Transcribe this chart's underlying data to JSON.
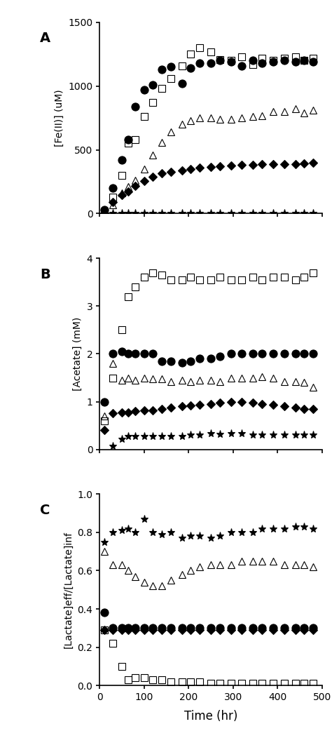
{
  "panel_A": {
    "ylabel": "[Fe(II)] (uM)",
    "ylim": [
      0,
      1500
    ],
    "yticks": [
      0,
      500,
      1000,
      1500
    ],
    "series": {
      "square": {
        "x": [
          10,
          30,
          50,
          65,
          80,
          100,
          120,
          140,
          160,
          185,
          205,
          225,
          250,
          270,
          295,
          320,
          345,
          365,
          390,
          415,
          440,
          460,
          480
        ],
        "y": [
          15,
          130,
          300,
          550,
          580,
          760,
          870,
          980,
          1060,
          1160,
          1250,
          1300,
          1270,
          1210,
          1200,
          1230,
          1170,
          1220,
          1200,
          1220,
          1230,
          1200,
          1220
        ],
        "marker": "s",
        "facecolor": "none",
        "edgecolor": "black",
        "ms": 7
      },
      "circle": {
        "x": [
          10,
          30,
          50,
          65,
          80,
          100,
          120,
          140,
          160,
          185,
          205,
          225,
          250,
          270,
          295,
          320,
          345,
          365,
          390,
          415,
          440,
          460,
          480
        ],
        "y": [
          30,
          200,
          420,
          580,
          840,
          970,
          1010,
          1130,
          1150,
          1020,
          1140,
          1180,
          1180,
          1200,
          1190,
          1160,
          1200,
          1180,
          1190,
          1200,
          1190,
          1200,
          1190
        ],
        "marker": "o",
        "facecolor": "black",
        "edgecolor": "black",
        "ms": 8
      },
      "triangle": {
        "x": [
          10,
          30,
          50,
          65,
          80,
          100,
          120,
          140,
          160,
          185,
          205,
          225,
          250,
          270,
          295,
          320,
          345,
          365,
          390,
          415,
          440,
          460,
          480
        ],
        "y": [
          5,
          70,
          160,
          210,
          260,
          350,
          460,
          560,
          640,
          700,
          730,
          750,
          750,
          740,
          740,
          750,
          760,
          770,
          800,
          800,
          820,
          790,
          810
        ],
        "marker": "^",
        "facecolor": "none",
        "edgecolor": "black",
        "ms": 7
      },
      "diamond": {
        "x": [
          10,
          30,
          50,
          65,
          80,
          100,
          120,
          140,
          160,
          185,
          205,
          225,
          250,
          270,
          295,
          320,
          345,
          365,
          390,
          415,
          440,
          460,
          480
        ],
        "y": [
          5,
          90,
          145,
          175,
          215,
          255,
          290,
          315,
          325,
          340,
          350,
          360,
          365,
          370,
          375,
          380,
          380,
          385,
          385,
          390,
          390,
          395,
          400
        ],
        "marker": "D",
        "facecolor": "black",
        "edgecolor": "black",
        "ms": 6
      },
      "star": {
        "x": [
          10,
          30,
          50,
          65,
          80,
          100,
          120,
          140,
          160,
          185,
          205,
          225,
          250,
          270,
          295,
          320,
          345,
          365,
          390,
          415,
          440,
          460,
          480
        ],
        "y": [
          5,
          5,
          5,
          5,
          5,
          5,
          5,
          5,
          5,
          5,
          5,
          5,
          5,
          5,
          5,
          5,
          5,
          5,
          5,
          5,
          5,
          5,
          5
        ],
        "marker": "P",
        "facecolor": "black",
        "edgecolor": "black",
        "ms": 6
      }
    }
  },
  "panel_B": {
    "ylabel": "[Acetate] (mM)",
    "ylim": [
      0,
      4
    ],
    "yticks": [
      0,
      1,
      2,
      3,
      4
    ],
    "series": {
      "square": {
        "x": [
          10,
          30,
          50,
          65,
          80,
          100,
          120,
          140,
          160,
          185,
          205,
          225,
          250,
          270,
          295,
          320,
          345,
          365,
          390,
          415,
          440,
          460,
          480
        ],
        "y": [
          0.6,
          1.5,
          2.5,
          3.2,
          3.4,
          3.6,
          3.7,
          3.65,
          3.55,
          3.55,
          3.6,
          3.55,
          3.55,
          3.6,
          3.55,
          3.55,
          3.6,
          3.55,
          3.6,
          3.6,
          3.55,
          3.6,
          3.7
        ],
        "marker": "s",
        "facecolor": "none",
        "edgecolor": "black",
        "ms": 7
      },
      "circle": {
        "x": [
          10,
          30,
          50,
          65,
          80,
          100,
          120,
          140,
          160,
          185,
          205,
          225,
          250,
          270,
          295,
          320,
          345,
          365,
          390,
          415,
          440,
          460,
          480
        ],
        "y": [
          1.0,
          2.0,
          2.05,
          2.0,
          2.0,
          2.0,
          2.0,
          1.85,
          1.85,
          1.82,
          1.85,
          1.9,
          1.9,
          1.95,
          2.0,
          2.0,
          2.0,
          2.0,
          2.0,
          2.0,
          2.0,
          2.0,
          2.0
        ],
        "marker": "o",
        "facecolor": "black",
        "edgecolor": "black",
        "ms": 8
      },
      "triangle": {
        "x": [
          10,
          30,
          50,
          65,
          80,
          100,
          120,
          140,
          160,
          185,
          205,
          225,
          250,
          270,
          295,
          320,
          345,
          365,
          390,
          415,
          440,
          460,
          480
        ],
        "y": [
          0.7,
          1.8,
          1.45,
          1.5,
          1.45,
          1.5,
          1.48,
          1.48,
          1.42,
          1.45,
          1.42,
          1.45,
          1.45,
          1.42,
          1.5,
          1.5,
          1.5,
          1.52,
          1.5,
          1.42,
          1.42,
          1.4,
          1.3
        ],
        "marker": "^",
        "facecolor": "none",
        "edgecolor": "black",
        "ms": 7
      },
      "diamond": {
        "x": [
          10,
          30,
          50,
          65,
          80,
          100,
          120,
          140,
          160,
          185,
          205,
          225,
          250,
          270,
          295,
          320,
          345,
          365,
          390,
          415,
          440,
          460,
          480
        ],
        "y": [
          0.4,
          0.76,
          0.78,
          0.78,
          0.8,
          0.82,
          0.82,
          0.85,
          0.87,
          0.9,
          0.92,
          0.93,
          0.95,
          0.98,
          1.0,
          1.0,
          0.98,
          0.95,
          0.93,
          0.9,
          0.88,
          0.85,
          0.85
        ],
        "marker": "D",
        "facecolor": "black",
        "edgecolor": "black",
        "ms": 6
      },
      "star": {
        "x": [
          30,
          50,
          65,
          80,
          100,
          120,
          140,
          160,
          185,
          205,
          225,
          250,
          270,
          295,
          320,
          345,
          365,
          390,
          415,
          440,
          460,
          480
        ],
        "y": [
          0.07,
          0.22,
          0.27,
          0.28,
          0.28,
          0.28,
          0.28,
          0.28,
          0.28,
          0.3,
          0.3,
          0.33,
          0.32,
          0.33,
          0.33,
          0.3,
          0.3,
          0.3,
          0.3,
          0.3,
          0.3,
          0.3
        ],
        "marker": "P",
        "facecolor": "black",
        "edgecolor": "black",
        "ms": 6
      }
    }
  },
  "panel_C": {
    "ylabel": "[Lactate]eff/[Lactate]inf",
    "ylim": [
      0,
      1
    ],
    "yticks": [
      0,
      0.2,
      0.4,
      0.6,
      0.8,
      1.0
    ],
    "series": {
      "square": {
        "x": [
          10,
          30,
          50,
          65,
          80,
          100,
          120,
          140,
          160,
          185,
          205,
          225,
          250,
          270,
          295,
          320,
          345,
          365,
          390,
          415,
          440,
          460,
          480
        ],
        "y": [
          0.29,
          0.22,
          0.1,
          0.03,
          0.04,
          0.04,
          0.03,
          0.03,
          0.02,
          0.02,
          0.02,
          0.02,
          0.01,
          0.01,
          0.01,
          0.01,
          0.01,
          0.01,
          0.01,
          0.01,
          0.01,
          0.01,
          0.01
        ],
        "marker": "s",
        "facecolor": "none",
        "edgecolor": "black",
        "ms": 7
      },
      "circle": {
        "x": [
          10,
          30,
          50,
          65,
          80,
          100,
          120,
          140,
          160,
          185,
          205,
          225,
          250,
          270,
          295,
          320,
          345,
          365,
          390,
          415,
          440,
          460,
          480
        ],
        "y": [
          0.38,
          0.3,
          0.3,
          0.3,
          0.3,
          0.3,
          0.3,
          0.3,
          0.3,
          0.3,
          0.3,
          0.3,
          0.3,
          0.3,
          0.3,
          0.3,
          0.3,
          0.3,
          0.3,
          0.3,
          0.3,
          0.3,
          0.3
        ],
        "marker": "o",
        "facecolor": "black",
        "edgecolor": "black",
        "ms": 8
      },
      "triangle": {
        "x": [
          10,
          30,
          50,
          65,
          80,
          100,
          120,
          140,
          160,
          185,
          205,
          225,
          250,
          270,
          295,
          320,
          345,
          365,
          390,
          415,
          440,
          460,
          480
        ],
        "y": [
          0.7,
          0.63,
          0.63,
          0.6,
          0.57,
          0.54,
          0.52,
          0.52,
          0.55,
          0.58,
          0.6,
          0.62,
          0.63,
          0.63,
          0.63,
          0.65,
          0.65,
          0.65,
          0.65,
          0.63,
          0.63,
          0.63,
          0.62
        ],
        "marker": "^",
        "facecolor": "none",
        "edgecolor": "black",
        "ms": 7
      },
      "diamond": {
        "x": [
          10,
          30,
          50,
          65,
          80,
          100,
          120,
          140,
          160,
          185,
          205,
          225,
          250,
          270,
          295,
          320,
          345,
          365,
          390,
          415,
          440,
          460,
          480
        ],
        "y": [
          0.29,
          0.29,
          0.29,
          0.29,
          0.29,
          0.29,
          0.29,
          0.29,
          0.29,
          0.29,
          0.29,
          0.29,
          0.29,
          0.29,
          0.29,
          0.29,
          0.29,
          0.29,
          0.29,
          0.29,
          0.29,
          0.29,
          0.29
        ],
        "marker": "D",
        "facecolor": "black",
        "edgecolor": "black",
        "ms": 6
      },
      "star": {
        "x": [
          10,
          30,
          50,
          65,
          80,
          100,
          120,
          140,
          160,
          185,
          205,
          225,
          250,
          270,
          295,
          320,
          345,
          365,
          390,
          415,
          440,
          460,
          480
        ],
        "y": [
          0.75,
          0.8,
          0.81,
          0.82,
          0.8,
          0.87,
          0.8,
          0.79,
          0.8,
          0.77,
          0.78,
          0.78,
          0.77,
          0.78,
          0.8,
          0.8,
          0.8,
          0.82,
          0.82,
          0.82,
          0.83,
          0.83,
          0.82
        ],
        "marker": "P",
        "facecolor": "black",
        "edgecolor": "black",
        "ms": 6
      }
    }
  },
  "xlabel": "Time (hr)",
  "xlim": [
    0,
    500
  ],
  "xticks": [
    0,
    100,
    200,
    300,
    400,
    500
  ],
  "panel_labels": [
    "A",
    "B",
    "C"
  ],
  "background_color": "white"
}
